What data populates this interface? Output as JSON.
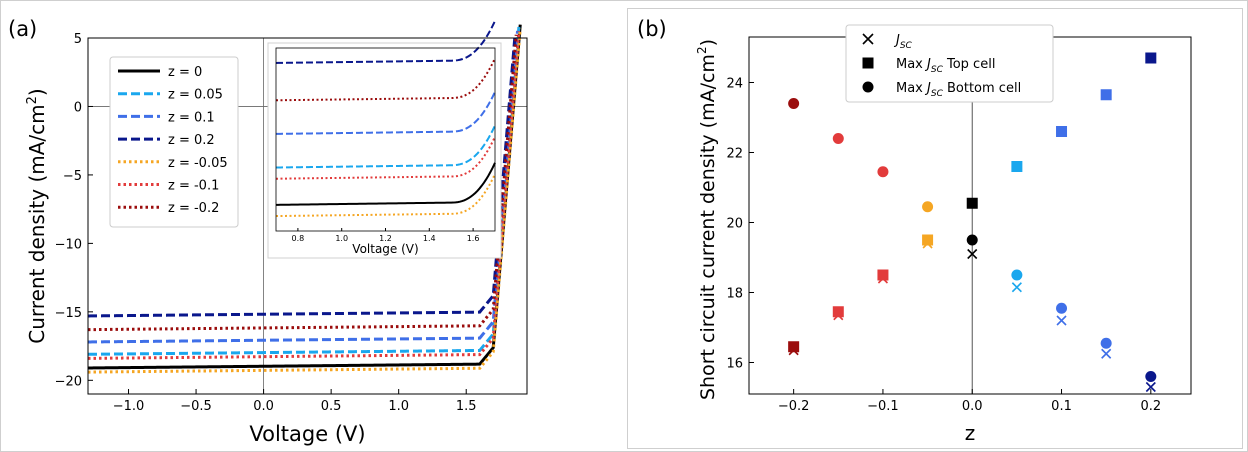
{
  "panels": {
    "a": {
      "label": "(a)"
    },
    "b": {
      "label": "(b)"
    }
  },
  "chart_data": [
    {
      "id": "a",
      "type": "line",
      "xlabel": "Voltage (V)",
      "ylabel": "Current density (mA/cm",
      "ylabel_sup": "2",
      "ylabel_close": ")",
      "xlim": [
        -1.3,
        1.95
      ],
      "ylim": [
        -21,
        5
      ],
      "xticks": [
        -1.0,
        -0.5,
        0.0,
        0.5,
        1.0,
        1.5
      ],
      "xtick_labels": [
        "−1.0",
        "−0.5",
        "0.0",
        "0.5",
        "1.0",
        "1.5"
      ],
      "yticks": [
        5,
        0,
        -5,
        -10,
        -15,
        -20
      ],
      "ytick_labels": [
        "5",
        "0",
        "−5",
        "−10",
        "−15",
        "−20"
      ],
      "legend_position": "upper-left",
      "series": [
        {
          "name": "z = 0",
          "color": "#000000",
          "dash": "solid",
          "jsc": -19.1
        },
        {
          "name": "z = 0.05",
          "color": "#1aa7ee",
          "dash": "dashed",
          "jsc": -18.1
        },
        {
          "name": "z = 0.1",
          "color": "#3f6fe8",
          "dash": "dashed",
          "jsc": -17.2
        },
        {
          "name": "z = 0.2",
          "color": "#0a178c",
          "dash": "dashed",
          "jsc": -15.3
        },
        {
          "name": "z = -0.05",
          "color": "#f5a623",
          "dash": "dotted",
          "jsc": -19.4
        },
        {
          "name": "z = -0.1",
          "color": "#e23b3b",
          "dash": "dotted",
          "jsc": -18.4
        },
        {
          "name": "z = -0.2",
          "color": "#9b0d0d",
          "dash": "dotted",
          "jsc": -16.3
        }
      ],
      "inset": {
        "xlabel": "Voltage (V)",
        "xlim": [
          0.7,
          1.7
        ],
        "ylim": [
          -19.8,
          -14.9
        ],
        "xticks": [
          0.8,
          1.0,
          1.2,
          1.4,
          1.6
        ],
        "xtick_labels": [
          "0.8",
          "1.0",
          "1.2",
          "1.4",
          "1.6"
        ]
      }
    },
    {
      "id": "b",
      "type": "scatter",
      "xlabel": "z",
      "ylabel": "Short circuit current density (mA/cm",
      "ylabel_sup": "2",
      "ylabel_close": ")",
      "xlim": [
        -0.25,
        0.245
      ],
      "ylim": [
        15.1,
        25.3
      ],
      "xticks": [
        -0.2,
        -0.1,
        0.0,
        0.1,
        0.2
      ],
      "xtick_labels": [
        "−0.2",
        "−0.1",
        "0.0",
        "0.1",
        "0.2"
      ],
      "yticks": [
        16,
        18,
        20,
        22,
        24
      ],
      "ytick_labels": [
        "16",
        "18",
        "20",
        "22",
        "24"
      ],
      "legend_position": "top-center",
      "legend": [
        {
          "marker": "x",
          "label": "J",
          "sub": "SC",
          "suffix": ""
        },
        {
          "marker": "square",
          "label": "Max J",
          "sub": "SC",
          "suffix": " Top cell"
        },
        {
          "marker": "circle",
          "label": "Max J",
          "sub": "SC",
          "suffix": " Bottom cell"
        }
      ],
      "z": [
        -0.2,
        -0.15,
        -0.1,
        -0.05,
        0.0,
        0.05,
        0.1,
        0.15,
        0.2
      ],
      "colors": [
        "#9b0d0d",
        "#e23b3b",
        "#e23b3b",
        "#f5a623",
        "#000000",
        "#1aa7ee",
        "#3f6fe8",
        "#3f6fe8",
        "#0a178c"
      ],
      "series": [
        {
          "marker": "x",
          "values": [
            16.35,
            17.35,
            18.4,
            19.4,
            19.1,
            18.15,
            17.2,
            16.25,
            15.3
          ]
        },
        {
          "marker": "square",
          "values": [
            16.45,
            17.45,
            18.5,
            19.5,
            20.55,
            21.6,
            22.6,
            23.65,
            24.7
          ]
        },
        {
          "marker": "circle",
          "values": [
            23.4,
            22.4,
            21.45,
            20.45,
            19.5,
            18.5,
            17.55,
            16.55,
            15.6
          ]
        }
      ]
    }
  ]
}
